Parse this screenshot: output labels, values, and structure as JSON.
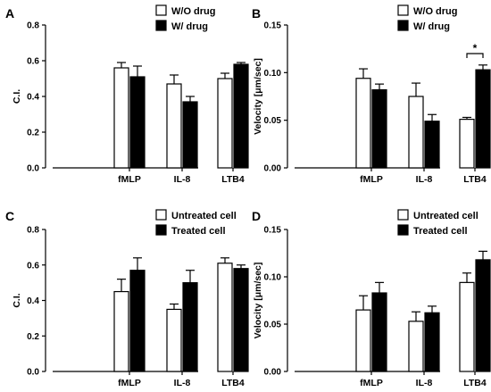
{
  "chart_data": [
    {
      "type": "bar",
      "panel_label": "A",
      "categories": [
        "fMLP",
        "IL-8",
        "LTB4"
      ],
      "series": [
        {
          "name": "W/O drug",
          "color": "#ffffff",
          "values": [
            0.56,
            0.47,
            0.5
          ],
          "errors": [
            0.03,
            0.05,
            0.03
          ]
        },
        {
          "name": "W/ drug",
          "color": "#000000",
          "values": [
            0.51,
            0.37,
            0.58
          ],
          "errors": [
            0.06,
            0.03,
            0.01
          ]
        }
      ],
      "ylabel": "C.I.",
      "ylim": [
        0,
        0.8
      ],
      "yticks": [
        "0.0",
        "0.2",
        "0.4",
        "0.6",
        "0.8"
      ],
      "legend": "top-right"
    },
    {
      "type": "bar",
      "panel_label": "B",
      "categories": [
        "fMLP",
        "IL-8",
        "LTB4"
      ],
      "series": [
        {
          "name": "W/O drug",
          "color": "#ffffff",
          "values": [
            0.094,
            0.075,
            0.051
          ],
          "errors": [
            0.01,
            0.014,
            0.002
          ]
        },
        {
          "name": "W/ drug",
          "color": "#000000",
          "values": [
            0.082,
            0.049,
            0.103
          ],
          "errors": [
            0.006,
            0.007,
            0.005
          ]
        }
      ],
      "ylabel": "Velocity [μm/sec]",
      "ylim": [
        0,
        0.15
      ],
      "yticks": [
        "0.00",
        "0.05",
        "0.10",
        "0.15"
      ],
      "legend": "top-right",
      "annotations": [
        {
          "text": "*",
          "category_index": 2
        }
      ]
    },
    {
      "type": "bar",
      "panel_label": "C",
      "categories": [
        "fMLP",
        "IL-8",
        "LTB4"
      ],
      "series": [
        {
          "name": "Untreated cell",
          "color": "#ffffff",
          "values": [
            0.45,
            0.35,
            0.61
          ],
          "errors": [
            0.07,
            0.03,
            0.03
          ]
        },
        {
          "name": "Treated cell",
          "color": "#000000",
          "values": [
            0.57,
            0.5,
            0.58
          ],
          "errors": [
            0.07,
            0.07,
            0.02
          ]
        }
      ],
      "ylabel": "C.I.",
      "ylim": [
        0,
        0.8
      ],
      "yticks": [
        "0.0",
        "0.2",
        "0.4",
        "0.6",
        "0.8"
      ],
      "legend": "top-right"
    },
    {
      "type": "bar",
      "panel_label": "D",
      "categories": [
        "fMLP",
        "IL-8",
        "LTB4"
      ],
      "series": [
        {
          "name": "Untreated cell",
          "color": "#ffffff",
          "values": [
            0.065,
            0.053,
            0.094
          ],
          "errors": [
            0.015,
            0.01,
            0.01
          ]
        },
        {
          "name": "Treated cell",
          "color": "#000000",
          "values": [
            0.083,
            0.062,
            0.118
          ],
          "errors": [
            0.011,
            0.007,
            0.009
          ]
        }
      ],
      "ylabel": "Velocity [μm/sec]",
      "ylim": [
        0,
        0.15
      ],
      "yticks": [
        "0.00",
        "0.05",
        "0.10",
        "0.15"
      ],
      "legend": "top-right"
    }
  ]
}
